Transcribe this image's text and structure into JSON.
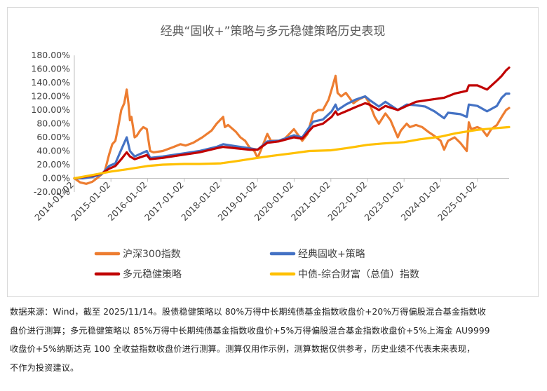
{
  "chart_data": {
    "type": "line",
    "title": "经典“固收+”策略与多元稳健策略历史表现",
    "ylim": [
      -20,
      180
    ],
    "y_ticks": [
      -20,
      0,
      20,
      40,
      60,
      80,
      100,
      120,
      140,
      160,
      180
    ],
    "y_tick_labels": [
      "-20.00%",
      "0.00%",
      "20.00%",
      "40.00%",
      "60.00%",
      "80.00%",
      "100.00%",
      "120.00%",
      "140.00%",
      "160.00%",
      "180.00%"
    ],
    "x_range": [
      "2014-01-02",
      "2025-11-14"
    ],
    "x_tick_labels": [
      "2014-01-02",
      "2015-01-02",
      "2016-01-02",
      "2017-01-02",
      "2018-01-02",
      "2019-01-02",
      "2020-01-02",
      "2021-01-02",
      "2022-01-02",
      "2023-01-02",
      "2024-01-02",
      "2025-01-02"
    ],
    "grid": false,
    "legend_position": "bottom",
    "series": [
      {
        "name": "沪深300指数",
        "color": "#ED7D31",
        "points": [
          [
            "2014-01-02",
            0
          ],
          [
            "2014-03-01",
            -6
          ],
          [
            "2014-05-01",
            -8
          ],
          [
            "2014-07-01",
            -5
          ],
          [
            "2014-09-01",
            2
          ],
          [
            "2014-11-01",
            10
          ],
          [
            "2014-12-15",
            35
          ],
          [
            "2015-01-15",
            50
          ],
          [
            "2015-02-15",
            55
          ],
          [
            "2015-03-15",
            75
          ],
          [
            "2015-04-15",
            100
          ],
          [
            "2015-05-15",
            110
          ],
          [
            "2015-06-08",
            130
          ],
          [
            "2015-06-25",
            110
          ],
          [
            "2015-07-10",
            85
          ],
          [
            "2015-07-25",
            90
          ],
          [
            "2015-08-26",
            60
          ],
          [
            "2015-09-15",
            62
          ],
          [
            "2015-10-20",
            70
          ],
          [
            "2015-11-20",
            75
          ],
          [
            "2015-12-25",
            72
          ],
          [
            "2016-01-28",
            40
          ],
          [
            "2016-03-01",
            38
          ],
          [
            "2016-06-01",
            40
          ],
          [
            "2016-09-01",
            45
          ],
          [
            "2016-11-25",
            50
          ],
          [
            "2017-01-15",
            48
          ],
          [
            "2017-04-01",
            52
          ],
          [
            "2017-07-01",
            60
          ],
          [
            "2017-10-01",
            70
          ],
          [
            "2017-11-20",
            80
          ],
          [
            "2018-01-24",
            90
          ],
          [
            "2018-02-10",
            75
          ],
          [
            "2018-03-15",
            78
          ],
          [
            "2018-06-01",
            68
          ],
          [
            "2018-07-15",
            60
          ],
          [
            "2018-09-01",
            55
          ],
          [
            "2018-10-15",
            45
          ],
          [
            "2018-12-01",
            40
          ],
          [
            "2019-01-03",
            30
          ],
          [
            "2019-02-01",
            40
          ],
          [
            "2019-04-10",
            65
          ],
          [
            "2019-05-15",
            55
          ],
          [
            "2019-08-01",
            55
          ],
          [
            "2019-10-01",
            58
          ],
          [
            "2019-12-31",
            72
          ],
          [
            "2020-02-03",
            65
          ],
          [
            "2020-03-23",
            55
          ],
          [
            "2020-05-15",
            65
          ],
          [
            "2020-07-10",
            95
          ],
          [
            "2020-09-01",
            100
          ],
          [
            "2020-10-15",
            100
          ],
          [
            "2020-12-10",
            115
          ],
          [
            "2021-01-10",
            130
          ],
          [
            "2021-02-18",
            150
          ],
          [
            "2021-03-10",
            125
          ],
          [
            "2021-04-15",
            120
          ],
          [
            "2021-06-01",
            125
          ],
          [
            "2021-08-15",
            110
          ],
          [
            "2021-10-01",
            115
          ],
          [
            "2021-12-10",
            120
          ],
          [
            "2022-01-20",
            110
          ],
          [
            "2022-03-15",
            90
          ],
          [
            "2022-04-26",
            80
          ],
          [
            "2022-06-30",
            95
          ],
          [
            "2022-08-20",
            85
          ],
          [
            "2022-10-31",
            60
          ],
          [
            "2022-12-01",
            70
          ],
          [
            "2023-01-28",
            80
          ],
          [
            "2023-03-01",
            75
          ],
          [
            "2023-05-01",
            78
          ],
          [
            "2023-07-01",
            75
          ],
          [
            "2023-09-01",
            68
          ],
          [
            "2023-11-01",
            62
          ],
          [
            "2024-01-01",
            55
          ],
          [
            "2024-02-05",
            42
          ],
          [
            "2024-03-15",
            55
          ],
          [
            "2024-05-20",
            60
          ],
          [
            "2024-07-15",
            52
          ],
          [
            "2024-09-18",
            40
          ],
          [
            "2024-10-08",
            82
          ],
          [
            "2024-11-01",
            72
          ],
          [
            "2025-01-02",
            75
          ],
          [
            "2025-02-15",
            72
          ],
          [
            "2025-04-08",
            62
          ],
          [
            "2025-05-20",
            72
          ],
          [
            "2025-07-15",
            78
          ],
          [
            "2025-09-01",
            90
          ],
          [
            "2025-10-15",
            100
          ],
          [
            "2025-11-14",
            103
          ]
        ]
      },
      {
        "name": "经典固收+策略",
        "color": "#4472C4",
        "points": [
          [
            "2014-01-02",
            0
          ],
          [
            "2014-04-01",
            0
          ],
          [
            "2014-07-01",
            2
          ],
          [
            "2014-10-01",
            6
          ],
          [
            "2014-12-15",
            18
          ],
          [
            "2015-02-15",
            22
          ],
          [
            "2015-04-15",
            42
          ],
          [
            "2015-06-08",
            60
          ],
          [
            "2015-07-10",
            40
          ],
          [
            "2015-08-26",
            32
          ],
          [
            "2015-12-25",
            40
          ],
          [
            "2016-01-28",
            30
          ],
          [
            "2016-06-01",
            32
          ],
          [
            "2016-12-01",
            36
          ],
          [
            "2017-06-01",
            40
          ],
          [
            "2017-11-20",
            46
          ],
          [
            "2018-01-24",
            50
          ],
          [
            "2018-06-01",
            47
          ],
          [
            "2018-10-15",
            44
          ],
          [
            "2019-01-03",
            42
          ],
          [
            "2019-04-10",
            54
          ],
          [
            "2019-08-01",
            55
          ],
          [
            "2019-12-31",
            63
          ],
          [
            "2020-03-23",
            60
          ],
          [
            "2020-07-10",
            83
          ],
          [
            "2020-10-15",
            86
          ],
          [
            "2021-01-10",
            98
          ],
          [
            "2021-02-18",
            108
          ],
          [
            "2021-03-10",
            100
          ],
          [
            "2021-06-01",
            108
          ],
          [
            "2021-09-01",
            115
          ],
          [
            "2021-12-10",
            120
          ],
          [
            "2022-01-20",
            115
          ],
          [
            "2022-04-26",
            105
          ],
          [
            "2022-06-30",
            112
          ],
          [
            "2022-10-31",
            100
          ],
          [
            "2023-01-28",
            108
          ],
          [
            "2023-05-01",
            107
          ],
          [
            "2023-08-01",
            105
          ],
          [
            "2023-11-01",
            98
          ],
          [
            "2024-02-05",
            88
          ],
          [
            "2024-03-15",
            96
          ],
          [
            "2024-07-15",
            94
          ],
          [
            "2024-09-18",
            90
          ],
          [
            "2024-10-08",
            108
          ],
          [
            "2025-01-02",
            106
          ],
          [
            "2025-04-08",
            98
          ],
          [
            "2025-07-15",
            106
          ],
          [
            "2025-09-01",
            118
          ],
          [
            "2025-10-15",
            124
          ],
          [
            "2025-11-14",
            124
          ]
        ]
      },
      {
        "name": "多元稳健策略",
        "color": "#C00000",
        "points": [
          [
            "2014-01-02",
            0
          ],
          [
            "2014-04-01",
            2
          ],
          [
            "2014-07-01",
            4
          ],
          [
            "2014-10-01",
            7
          ],
          [
            "2014-12-15",
            14
          ],
          [
            "2015-02-15",
            18
          ],
          [
            "2015-04-15",
            28
          ],
          [
            "2015-06-08",
            38
          ],
          [
            "2015-07-10",
            32
          ],
          [
            "2015-08-26",
            28
          ],
          [
            "2015-12-25",
            34
          ],
          [
            "2016-01-28",
            28
          ],
          [
            "2016-06-01",
            30
          ],
          [
            "2016-12-01",
            34
          ],
          [
            "2017-06-01",
            38
          ],
          [
            "2017-11-20",
            44
          ],
          [
            "2018-01-24",
            46
          ],
          [
            "2018-06-01",
            44
          ],
          [
            "2018-10-15",
            42
          ],
          [
            "2019-01-03",
            42
          ],
          [
            "2019-04-10",
            52
          ],
          [
            "2019-08-01",
            54
          ],
          [
            "2019-12-31",
            60
          ],
          [
            "2020-03-23",
            58
          ],
          [
            "2020-07-10",
            76
          ],
          [
            "2020-10-15",
            80
          ],
          [
            "2021-01-10",
            90
          ],
          [
            "2021-02-18",
            98
          ],
          [
            "2021-03-10",
            93
          ],
          [
            "2021-06-01",
            98
          ],
          [
            "2021-09-01",
            104
          ],
          [
            "2021-12-10",
            110
          ],
          [
            "2022-01-20",
            108
          ],
          [
            "2022-04-26",
            100
          ],
          [
            "2022-06-30",
            106
          ],
          [
            "2022-10-31",
            100
          ],
          [
            "2023-01-28",
            106
          ],
          [
            "2023-05-01",
            112
          ],
          [
            "2023-08-01",
            114
          ],
          [
            "2023-11-01",
            116
          ],
          [
            "2024-02-05",
            118
          ],
          [
            "2024-05-20",
            124
          ],
          [
            "2024-09-18",
            128
          ],
          [
            "2024-10-08",
            136
          ],
          [
            "2025-01-02",
            136
          ],
          [
            "2025-04-08",
            130
          ],
          [
            "2025-07-15",
            143
          ],
          [
            "2025-09-01",
            150
          ],
          [
            "2025-10-15",
            158
          ],
          [
            "2025-11-14",
            162
          ]
        ]
      },
      {
        "name": "中债-综合财富（总值）指数",
        "color": "#FFC000",
        "points": [
          [
            "2014-01-02",
            0
          ],
          [
            "2014-06-01",
            4
          ],
          [
            "2015-01-02",
            10
          ],
          [
            "2015-06-01",
            13
          ],
          [
            "2016-01-02",
            18
          ],
          [
            "2016-06-01",
            20
          ],
          [
            "2017-01-02",
            21
          ],
          [
            "2017-06-01",
            21
          ],
          [
            "2018-01-02",
            22
          ],
          [
            "2018-06-01",
            25
          ],
          [
            "2019-01-02",
            30
          ],
          [
            "2019-06-01",
            33
          ],
          [
            "2020-01-02",
            37
          ],
          [
            "2020-06-01",
            40
          ],
          [
            "2021-01-02",
            41
          ],
          [
            "2021-06-01",
            44
          ],
          [
            "2022-01-02",
            49
          ],
          [
            "2022-06-01",
            51
          ],
          [
            "2023-01-02",
            53
          ],
          [
            "2023-06-01",
            57
          ],
          [
            "2024-01-02",
            61
          ],
          [
            "2024-06-01",
            66
          ],
          [
            "2025-01-02",
            71
          ],
          [
            "2025-06-01",
            73
          ],
          [
            "2025-11-14",
            75
          ]
        ]
      }
    ]
  },
  "footnote": {
    "line1": "数据来源：Wind，截至 2025/11/14。股债稳健策略以 80%万得中长期纯债基金指数收盘价+20%万得偏股混合基金指数收",
    "line2": "盘价进行测算；多元稳健策略以 85%万得中长期纯债基金指数收盘价+5%万得偏股混合基金指数收盘价+5%上海金 AU9999",
    "line3": "收盘价+5%纳斯达克 100 全收益指数收盘价进行测算。测算仅用作示例，测算数据仅供参考，历史业绩不代表未来表现，",
    "line4": "不作为投资建议。"
  }
}
